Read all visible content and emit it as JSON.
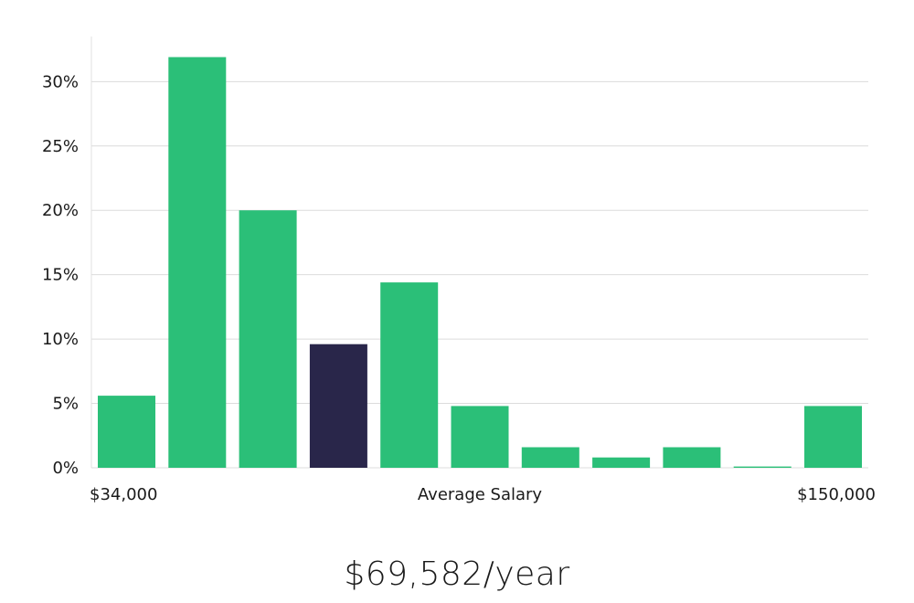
{
  "chart_data": {
    "type": "bar",
    "title": "",
    "xlabel": "Average Salary",
    "ylabel": "",
    "x_range_labels": {
      "min": "$34,000",
      "max": "$150,000"
    },
    "categories": [
      "",
      "",
      "",
      "",
      "",
      "",
      "",
      "",
      "",
      "",
      ""
    ],
    "values": [
      5.6,
      31.9,
      20.0,
      9.6,
      14.4,
      4.8,
      1.6,
      0.8,
      1.6,
      0.1,
      4.8
    ],
    "highlight_index": 3,
    "ylim": [
      0,
      33.5
    ],
    "yticks": [
      0,
      5,
      10,
      15,
      20,
      25,
      30
    ],
    "ytick_labels": [
      "0%",
      "5%",
      "10%",
      "15%",
      "20%",
      "25%",
      "30%"
    ],
    "grid": true,
    "legend": "none",
    "colors": {
      "bar": "#2bbf78",
      "highlight": "#29264a",
      "grid": "#dcdcdc",
      "axis": "#e2e2e2"
    }
  },
  "summary": {
    "salary_text": "$69,582/year"
  }
}
